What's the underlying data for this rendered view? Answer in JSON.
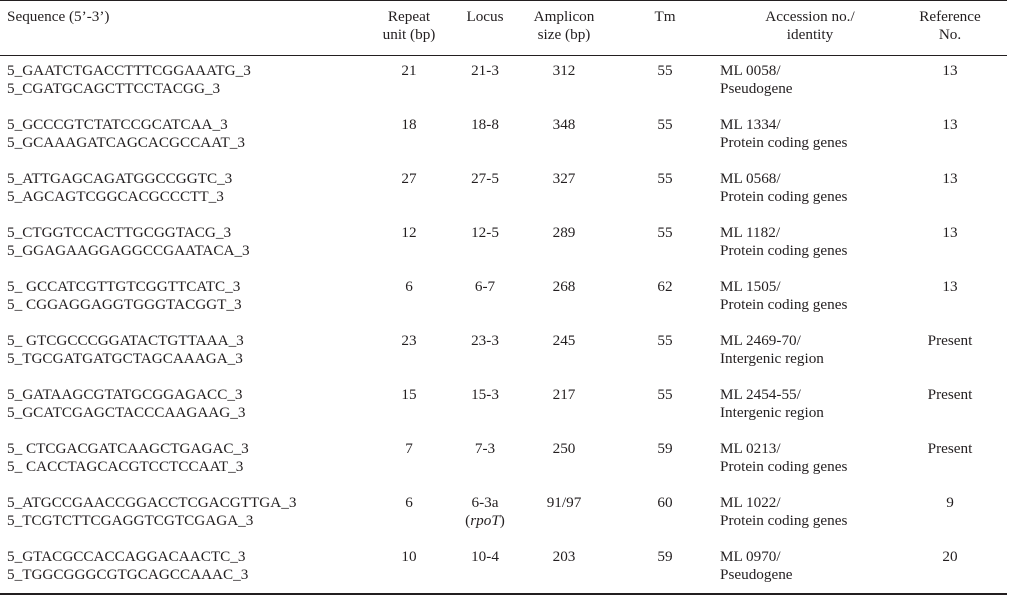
{
  "header": {
    "sequence": "Sequence (5’-3’)",
    "repeat_unit": [
      "Repeat",
      "unit (bp)"
    ],
    "locus": "Locus",
    "amplicon": [
      "Amplicon",
      "size (bp)"
    ],
    "tm": "Tm",
    "accession": [
      "Accession no./",
      "identity"
    ],
    "reference": [
      "Reference",
      "No."
    ]
  },
  "rows": [
    {
      "seq1": "5_GAATCTGACCTTTCGGAAATG_3",
      "seq2": "5_CGATGCAGCTTCCTACGG_3",
      "repeat": "21",
      "locus": "21-3",
      "locus2": "",
      "amplicon": "312",
      "tm": "55",
      "acc1": "ML 0058/",
      "acc2": "Pseudogene",
      "ref": "13"
    },
    {
      "seq1": "5_GCCCGTCTATCCGCATCAA_3",
      "seq2": "5_GCAAAGATCAGCACGCCAAT_3",
      "repeat": "18",
      "locus": "18-8",
      "locus2": "",
      "amplicon": "348",
      "tm": "55",
      "acc1": "ML 1334/",
      "acc2": "Protein coding genes",
      "ref": "13"
    },
    {
      "seq1": "5_ATTGAGCAGATGGCCGGTC_3",
      "seq2": "5_AGCAGTCGGCACGCCCTT_3",
      "repeat": "27",
      "locus": "27-5",
      "locus2": "",
      "amplicon": "327",
      "tm": "55",
      "acc1": "ML 0568/",
      "acc2": "Protein coding genes",
      "ref": "13"
    },
    {
      "seq1": "5_CTGGTCCACTTGCGGTACG_3",
      "seq2": "5_GGAGAAGGAGGCCGAATACA_3",
      "repeat": "12",
      "locus": "12-5",
      "locus2": "",
      "amplicon": "289",
      "tm": "55",
      "acc1": "ML 1182/",
      "acc2": "Protein coding genes",
      "ref": "13"
    },
    {
      "seq1": "5_ GCCATCGTTGTCGGTTCATC_3",
      "seq2": "5_ CGGAGGAGGTGGGTACGGT_3",
      "repeat": "6",
      "locus": "6-7",
      "locus2": "",
      "amplicon": "268",
      "tm": "62",
      "acc1": "ML 1505/",
      "acc2": "Protein coding genes",
      "ref": "13"
    },
    {
      "seq1": "5_ GTCGCCCGGATACTGTTAAA_3",
      "seq2": "5_TGCGATGATGCTAGCAAAGA_3",
      "repeat": "23",
      "locus": "23-3",
      "locus2": "",
      "amplicon": "245",
      "tm": "55",
      "acc1": "ML 2469-70/",
      "acc2": "Intergenic region",
      "ref": "Present"
    },
    {
      "seq1": "5_GATAAGCGTATGCGGAGACC_3",
      "seq2": "5_GCATCGAGCTACCCAAGAAG_3",
      "repeat": "15",
      "locus": "15-3",
      "locus2": "",
      "amplicon": "217",
      "tm": "55",
      "acc1": "ML 2454-55/",
      "acc2": "Intergenic region",
      "ref": "Present"
    },
    {
      "seq1": "5_ CTCGACGATCAAGCTGAGAC_3",
      "seq2": "5_ CACCTAGCACGTCCTCCAAT_3",
      "repeat": "7",
      "locus": "7-3",
      "locus2": "",
      "amplicon": "250",
      "tm": "59",
      "acc1": "ML 0213/",
      "acc2": "Protein coding genes",
      "ref": "Present"
    },
    {
      "seq1": "5_ATGCCGAACCGGACCTCGACGTTGA_3",
      "seq2": "5_TCGTCTTCGAGGTCGTCGAGA_3",
      "repeat": "6",
      "locus": "6-3a",
      "locus2": "(rpoT)",
      "amplicon": "91/97",
      "tm": "60",
      "acc1": "ML 1022/",
      "acc2": "Protein coding genes",
      "ref": "9"
    },
    {
      "seq1": "5_GTACGCCACCAGGACAACTC_3",
      "seq2": "5_TGGCGGGCGTGCAGCCAAAC_3",
      "repeat": "10",
      "locus": "10-4",
      "locus2": "",
      "amplicon": "203",
      "tm": "59",
      "acc1": "ML 0970/",
      "acc2": "Pseudogene",
      "ref": "20"
    }
  ]
}
